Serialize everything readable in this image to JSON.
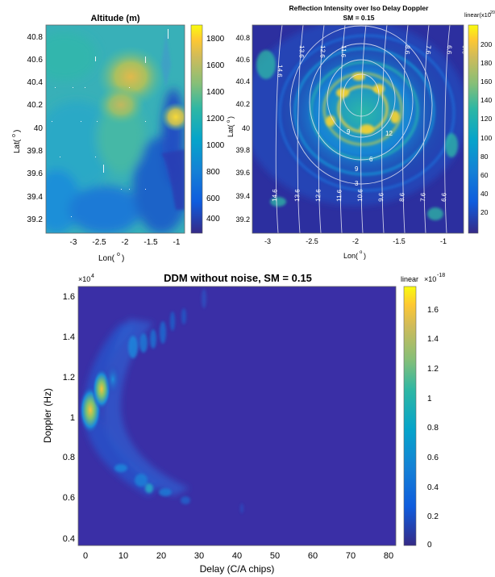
{
  "panels": [
    {
      "id": "altitude",
      "title": "Altitude (m)",
      "xlabel": "Lon(",
      "ylabel": "Lat(",
      "degree_mark": "o",
      "x_ticks": [
        "-3",
        "-2.5",
        "-2",
        "-1.5",
        "-1"
      ],
      "y_ticks": [
        "40.8",
        "40.6",
        "40.4",
        "40.2",
        "40",
        "39.8",
        "39.6",
        "39.4",
        "39.2"
      ],
      "colorbar_ticks": [
        "1800",
        "1600",
        "1400",
        "1200",
        "1000",
        "800",
        "600",
        "400"
      ]
    },
    {
      "id": "reflection",
      "title_line1": "Reflection Intensity over Iso Delay Doppler",
      "title_line2": "SM = 0.15",
      "colorbar_label": "linear(x10",
      "colorbar_exp": "-20",
      "xlabel": "Lon(",
      "ylabel": "Lat(",
      "degree_mark": "o",
      "x_ticks": [
        "-3",
        "-2.5",
        "-2",
        "-1.5",
        "-1"
      ],
      "y_ticks": [
        "40.8",
        "40.6",
        "40.4",
        "40.2",
        "40",
        "39.8",
        "39.6",
        "39.4",
        "39.2"
      ],
      "colorbar_ticks": [
        "200",
        "180",
        "160",
        "140",
        "120",
        "100",
        "80",
        "60",
        "40",
        "20"
      ],
      "contour_labels": [
        "14.6",
        "13.6",
        "12.6",
        "11.6",
        "10.6",
        "9.6",
        "8.6",
        "7.6",
        "6.6",
        "5.6",
        "9",
        "9",
        "6",
        "3",
        "12"
      ]
    },
    {
      "id": "ddm",
      "title": "DDM without noise, SM = 0.15",
      "xlabel": "Delay (C/A chips)",
      "ylabel": "Doppler (Hz)",
      "y_exponent_base": "×10",
      "y_exponent": "4",
      "colorbar_label": "linear",
      "colorbar_exp_base": "×10",
      "colorbar_exp": "-18",
      "x_ticks": [
        "0",
        "10",
        "20",
        "30",
        "40",
        "50",
        "60",
        "70",
        "80"
      ],
      "y_ticks": [
        "1.6",
        "1.4",
        "1.2",
        "1",
        "0.8",
        "0.6",
        "0.4"
      ],
      "colorbar_ticks": [
        "1.6",
        "1.4",
        "1.2",
        "1",
        "0.8",
        "0.6",
        "0.4",
        "0.2",
        "0"
      ]
    }
  ],
  "chart_data": [
    {
      "type": "heatmap",
      "title": "Altitude (m)",
      "xlabel": "Lon(o)",
      "ylabel": "Lat(o)",
      "xlim": [
        -3.2,
        -0.9
      ],
      "ylim": [
        39.1,
        40.9
      ],
      "clim": [
        320,
        1900
      ],
      "colormap": "parula",
      "notes_peak": {
        "x": -1.75,
        "y": 40.5,
        "value": 1700
      },
      "secondary_peak": {
        "x": -0.95,
        "y": 40.05,
        "value": 1800
      }
    },
    {
      "type": "heatmap",
      "title": "Reflection Intensity over Iso Delay Doppler SM = 0.15",
      "xlabel": "Lon(o)",
      "ylabel": "Lat(o)",
      "xlim": [
        -3.2,
        -0.7
      ],
      "ylim": [
        39.1,
        40.9
      ],
      "clim": [
        0,
        215
      ],
      "colorbar_unit": "linear(x10^-20)",
      "colormap": "parula",
      "center": {
        "x": -2.0,
        "y": 40.15
      }
    },
    {
      "type": "heatmap",
      "title": "DDM without noise, SM = 0.15",
      "xlabel": "Delay (C/A chips)",
      "ylabel": "Doppler (Hz)",
      "xlim": [
        -2,
        82
      ],
      "ylim": [
        3800,
        16500
      ],
      "clim": [
        0,
        1.75e-18
      ],
      "colorbar_unit": "linear ×10^-18",
      "colormap": "parula",
      "peak": {
        "delay": 1,
        "doppler": 10300,
        "value": 1.6e-18
      },
      "secondary_peak": {
        "delay": 4,
        "doppler": 11500,
        "value": 1.45e-18
      }
    }
  ]
}
